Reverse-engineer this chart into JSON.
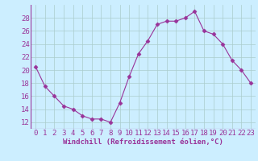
{
  "x": [
    0,
    1,
    2,
    3,
    4,
    5,
    6,
    7,
    8,
    9,
    10,
    11,
    12,
    13,
    14,
    15,
    16,
    17,
    18,
    19,
    20,
    21,
    22,
    23
  ],
  "y": [
    20.5,
    17.5,
    16.0,
    14.5,
    14.0,
    13.0,
    12.5,
    12.5,
    12.0,
    15.0,
    19.0,
    22.5,
    24.5,
    27.0,
    27.5,
    27.5,
    28.0,
    29.0,
    26.0,
    25.5,
    24.0,
    21.5,
    20.0,
    18.0
  ],
  "line_color": "#993399",
  "marker": "D",
  "marker_size": 2.5,
  "xlabel": "Windchill (Refroidissement éolien,°C)",
  "xlim": [
    -0.5,
    23.5
  ],
  "ylim": [
    11,
    30
  ],
  "yticks": [
    12,
    14,
    16,
    18,
    20,
    22,
    24,
    26,
    28
  ],
  "xticks": [
    0,
    1,
    2,
    3,
    4,
    5,
    6,
    7,
    8,
    9,
    10,
    11,
    12,
    13,
    14,
    15,
    16,
    17,
    18,
    19,
    20,
    21,
    22,
    23
  ],
  "background_color": "#cceeff",
  "grid_color": "#aacccc",
  "font_color": "#993399",
  "xlabel_fontsize": 6.5,
  "tick_fontsize": 6.5
}
